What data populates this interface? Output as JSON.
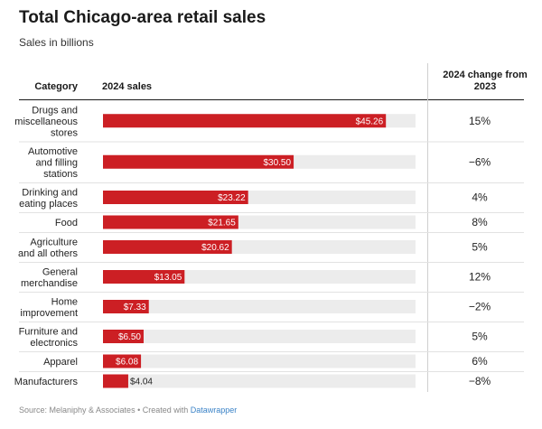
{
  "title": "Total Chicago-area retail sales",
  "subtitle": "Sales in billions",
  "headers": {
    "category": "Category",
    "sales": "2024 sales",
    "change_line1": "2024 change from",
    "change_line2": "2023"
  },
  "colors": {
    "bar": "#cc1f24",
    "track": "#ececec",
    "rule": "#1a1a1a",
    "divider": "#e2e2e2"
  },
  "footer": {
    "source": "Source: Melaniphy & Associates • Created with ",
    "tool": "Datawrapper"
  },
  "chart_data": {
    "type": "bar",
    "orientation": "horizontal",
    "title": "Total Chicago-area retail sales",
    "subtitle": "Sales in billions",
    "columns": [
      "Category",
      "2024 sales",
      "2024 change from 2023"
    ],
    "xlim": [
      0,
      50
    ],
    "rows": [
      {
        "category": [
          "Drugs and",
          "miscellaneous",
          "stores"
        ],
        "value": 45.26,
        "label": "$45.26",
        "change": "15%"
      },
      {
        "category": [
          "Automotive",
          "and filling",
          "stations"
        ],
        "value": 30.5,
        "label": "$30.50",
        "change": "−6%"
      },
      {
        "category": [
          "Drinking and",
          "eating places"
        ],
        "value": 23.22,
        "label": "$23.22",
        "change": "4%"
      },
      {
        "category": [
          "Food"
        ],
        "value": 21.65,
        "label": "$21.65",
        "change": "8%"
      },
      {
        "category": [
          "Agriculture",
          "and all others"
        ],
        "value": 20.62,
        "label": "$20.62",
        "change": "5%"
      },
      {
        "category": [
          "General",
          "merchandise"
        ],
        "value": 13.05,
        "label": "$13.05",
        "change": "12%"
      },
      {
        "category": [
          "Home",
          "improvement"
        ],
        "value": 7.33,
        "label": "$7.33",
        "change": "−2%"
      },
      {
        "category": [
          "Furniture and",
          "electronics"
        ],
        "value": 6.5,
        "label": "$6.50",
        "change": "5%"
      },
      {
        "category": [
          "Apparel"
        ],
        "value": 6.08,
        "label": "$6.08",
        "change": "6%"
      },
      {
        "category": [
          "Manufacturers"
        ],
        "value": 4.04,
        "label": "$4.04",
        "change": "−8%"
      }
    ]
  }
}
